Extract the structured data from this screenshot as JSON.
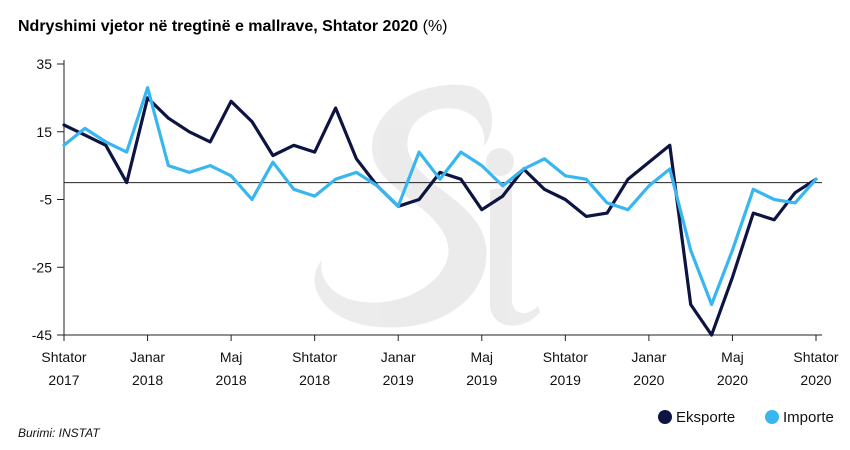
{
  "chart_data": {
    "type": "line",
    "title": "Ndryshimi vjetor në tregtinë e mallrave, Shtator 2020",
    "title_unit": "(%)",
    "ylim": [
      -45,
      35
    ],
    "yticks": [
      35,
      15,
      -5,
      -25,
      -45
    ],
    "zero_line": 0,
    "x_tick_labels": [
      {
        "index": 0,
        "line1": "Shtator",
        "line2": "2017"
      },
      {
        "index": 4,
        "line1": "Janar",
        "line2": "2018"
      },
      {
        "index": 8,
        "line1": "Maj",
        "line2": "2018"
      },
      {
        "index": 12,
        "line1": "Shtator",
        "line2": "2018"
      },
      {
        "index": 16,
        "line1": "Janar",
        "line2": "2019"
      },
      {
        "index": 20,
        "line1": "Maj",
        "line2": "2019"
      },
      {
        "index": 24,
        "line1": "Shtator",
        "line2": "2019"
      },
      {
        "index": 28,
        "line1": "Janar",
        "line2": "2020"
      },
      {
        "index": 32,
        "line1": "Maj",
        "line2": "2020"
      },
      {
        "index": 36,
        "line1": "Shtator",
        "line2": "2020"
      }
    ],
    "series": [
      {
        "name": "Eksporte",
        "color": "#0d1442",
        "values": [
          17,
          14,
          11,
          0,
          25,
          19,
          15,
          12,
          24,
          18,
          8,
          11,
          9,
          22,
          7,
          -1,
          -7,
          -5,
          3,
          1,
          -8,
          -4,
          4,
          -2,
          -5,
          -10,
          -9,
          1,
          6,
          11,
          -36,
          -45,
          -28,
          -9,
          -11,
          -3,
          1
        ]
      },
      {
        "name": "Importe",
        "color": "#38b6f0",
        "values": [
          11,
          16,
          12,
          9,
          28,
          5,
          3,
          5,
          2,
          -5,
          6,
          -2,
          -4,
          1,
          3,
          -1,
          -7,
          9,
          1,
          9,
          5,
          -1,
          4,
          7,
          2,
          1,
          -6,
          -8,
          -1,
          4,
          -20,
          -36,
          -20,
          -2,
          -5,
          -6,
          1
        ]
      }
    ],
    "source": "Burimi: INSTAT"
  }
}
